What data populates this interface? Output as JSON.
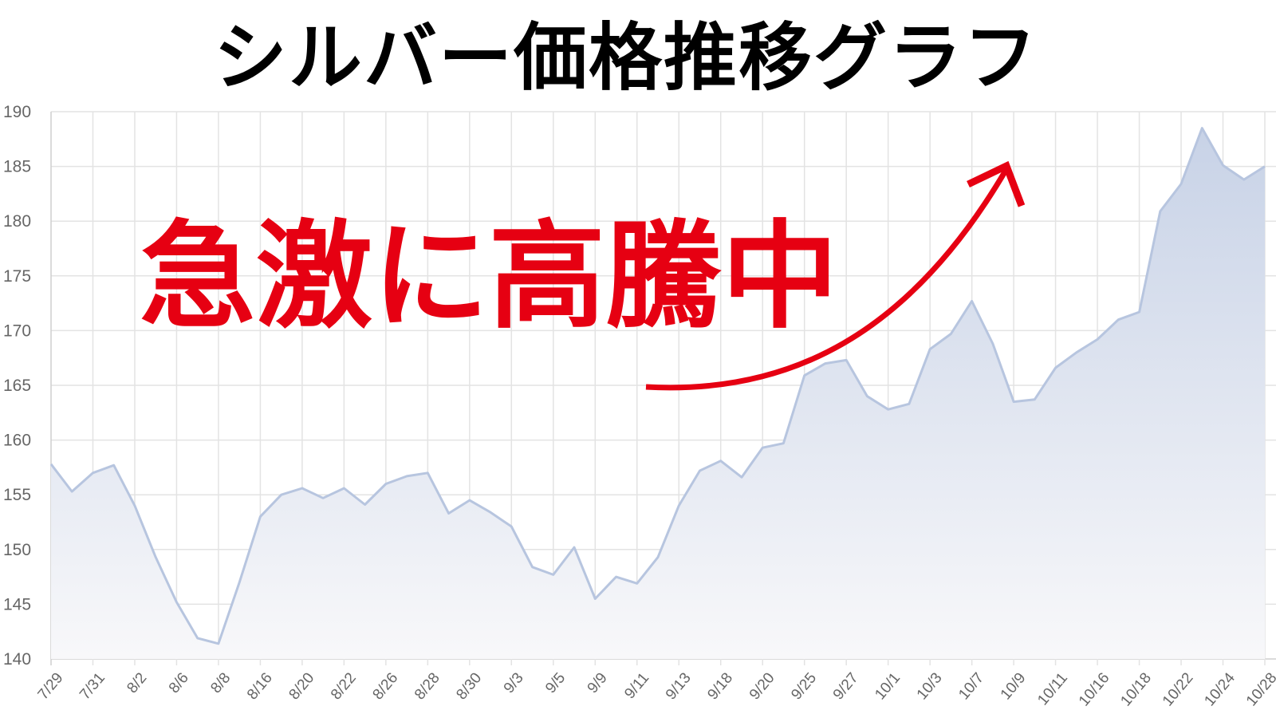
{
  "title": "シルバー価格推移グラフ",
  "annotation": "急激に高騰中",
  "colors": {
    "line": "#b7c5df",
    "fill_top": "#c6d1e6",
    "fill_bottom": "#f8f8fa",
    "grid": "#e3e3e3",
    "annotation": "#e60012",
    "title": "#000000"
  },
  "chart_data": {
    "type": "area",
    "title": "シルバー価格推移グラフ",
    "xlabel": "",
    "ylabel": "",
    "ylim": [
      140,
      190
    ],
    "y_ticks": [
      190,
      185,
      180,
      175,
      170,
      165,
      160,
      155,
      150,
      145,
      140
    ],
    "x_tick_labels": [
      "7/29",
      "7/31",
      "8/2",
      "8/6",
      "8/8",
      "8/16",
      "8/20",
      "8/22",
      "8/26",
      "8/28",
      "8/30",
      "9/3",
      "9/5",
      "9/9",
      "9/11",
      "9/13",
      "9/18",
      "9/20",
      "9/25",
      "9/27",
      "10/1",
      "10/3",
      "10/7",
      "10/9",
      "10/11",
      "10/16",
      "10/18",
      "10/22",
      "10/24",
      "10/28"
    ],
    "x_tick_every": 2,
    "values": [
      157.8,
      155.3,
      157.0,
      157.7,
      154.0,
      149.3,
      145.2,
      141.9,
      141.4,
      147.0,
      153.0,
      155.0,
      155.6,
      154.7,
      155.6,
      154.1,
      156.0,
      156.7,
      157.0,
      153.3,
      154.5,
      153.4,
      152.1,
      148.4,
      147.7,
      150.2,
      145.5,
      147.5,
      146.9,
      149.3,
      154.0,
      157.2,
      158.1,
      156.6,
      159.3,
      159.7,
      165.9,
      167.0,
      167.3,
      164.0,
      162.8,
      163.3,
      168.3,
      169.7,
      172.7,
      168.8,
      163.5,
      163.7,
      166.6,
      168.0,
      169.2,
      171.0,
      171.7,
      180.9,
      183.4,
      188.5,
      185.1,
      183.8,
      185.0
    ],
    "grid": true,
    "legend": "none"
  }
}
